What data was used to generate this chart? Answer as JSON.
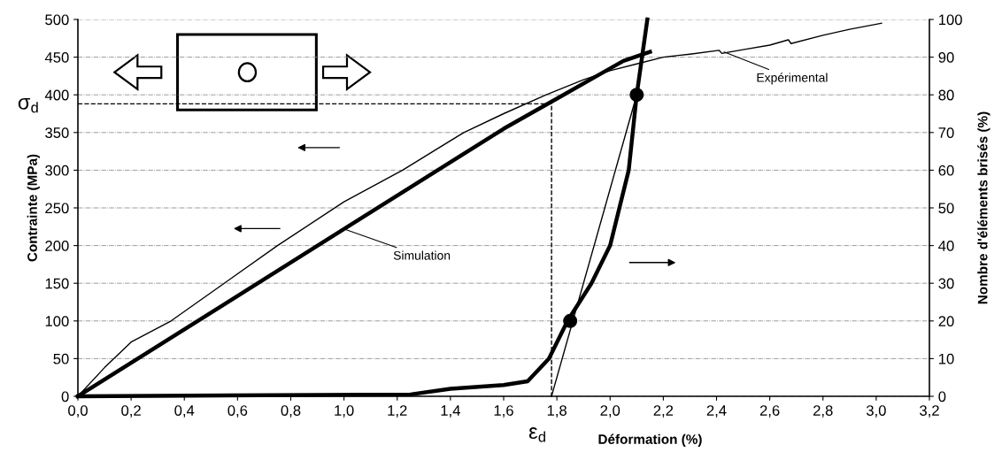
{
  "chart_data": {
    "type": "line",
    "xlabel": "Déformation (%)",
    "ylabel": "Contrainte (MPa)",
    "y2label": "Nombre d'éléments brisés (%)",
    "xlim": [
      0,
      3.2
    ],
    "xticks": [
      {
        "value": 0,
        "label": "0,0"
      },
      {
        "value": 0.2,
        "label": "0,2"
      },
      {
        "value": 0.4,
        "label": "0,4"
      },
      {
        "value": 0.6,
        "label": "0,6"
      },
      {
        "value": 0.8,
        "label": "0,8"
      },
      {
        "value": 1.0,
        "label": "1,0"
      },
      {
        "value": 1.2,
        "label": "1,2"
      },
      {
        "value": 1.4,
        "label": "1,4"
      },
      {
        "value": 1.6,
        "label": "1,6"
      },
      {
        "value": 1.8,
        "label": "1,8"
      },
      {
        "value": 2.0,
        "label": "2,0"
      },
      {
        "value": 2.2,
        "label": "2,2"
      },
      {
        "value": 2.4,
        "label": "2,4"
      },
      {
        "value": 2.6,
        "label": "2,6"
      },
      {
        "value": 2.8,
        "label": "2,8"
      },
      {
        "value": 3.0,
        "label": "3,0"
      },
      {
        "value": 3.2,
        "label": "3,2"
      }
    ],
    "ylim": [
      0,
      500
    ],
    "yticks": [
      0,
      50,
      100,
      150,
      200,
      250,
      300,
      350,
      400,
      450,
      500
    ],
    "y2lim": [
      0,
      100
    ],
    "y2ticks": [
      0,
      10,
      20,
      30,
      40,
      50,
      60,
      70,
      80,
      90,
      100
    ],
    "grid": "y",
    "legend": false,
    "series": [
      {
        "color": "#000000",
        "x": [
          0,
          0.1,
          0.2,
          0.35,
          0.55,
          0.75,
          1.0,
          1.22,
          1.45,
          1.6,
          1.76,
          1.9,
          2.0,
          2.1,
          2.2,
          2.3,
          2.41,
          2.42,
          2.5,
          2.6,
          2.67,
          2.68,
          2.8,
          2.9,
          3.02
        ],
        "values": [
          0,
          38,
          72,
          100,
          150,
          200,
          258,
          300,
          350,
          375,
          400,
          420,
          432,
          441,
          450,
          454,
          459,
          455,
          460,
          466,
          473,
          468,
          479,
          487,
          495
        ]
      },
      {
        "color": "#000000",
        "x": [
          0,
          1.0,
          1.6,
          1.8,
          1.95,
          2.05,
          2.15
        ],
        "values": [
          0,
          222,
          355,
          395,
          425,
          445,
          457
        ]
      },
      {
        "color": "#000000",
        "axis": "y2",
        "x": [
          0,
          1.25,
          1.4,
          1.6,
          1.69,
          1.73,
          1.77,
          1.84,
          1.93,
          2.0,
          2.07,
          2.1,
          2.12,
          2.14
        ],
        "values": [
          0,
          0.5,
          2,
          3,
          4,
          7,
          10,
          20,
          30,
          40,
          60,
          80,
          90,
          100
        ]
      },
      {
        "color": "#000000",
        "axis": "y2",
        "x": [
          1.78,
          2.1
        ],
        "values": [
          0,
          80
        ]
      },
      {
        "type": "scatter",
        "color": "#000000",
        "axis": "y2",
        "marker": "circle",
        "x": [
          1.85,
          2.1
        ],
        "values": [
          20,
          80
        ]
      },
      {
        "color": "#000000",
        "line_style": "dashed",
        "x": [
          0,
          1.78,
          1.78
        ],
        "values": [
          388,
          388,
          0
        ]
      }
    ],
    "annotations": [
      {
        "text": "Simulation",
        "x": 1.0,
        "y": 222
      },
      {
        "text": "Expérimental",
        "x": 2.42,
        "y": 458
      },
      "σ$_{d}$",
      "ε$_{d}$"
    ]
  }
}
